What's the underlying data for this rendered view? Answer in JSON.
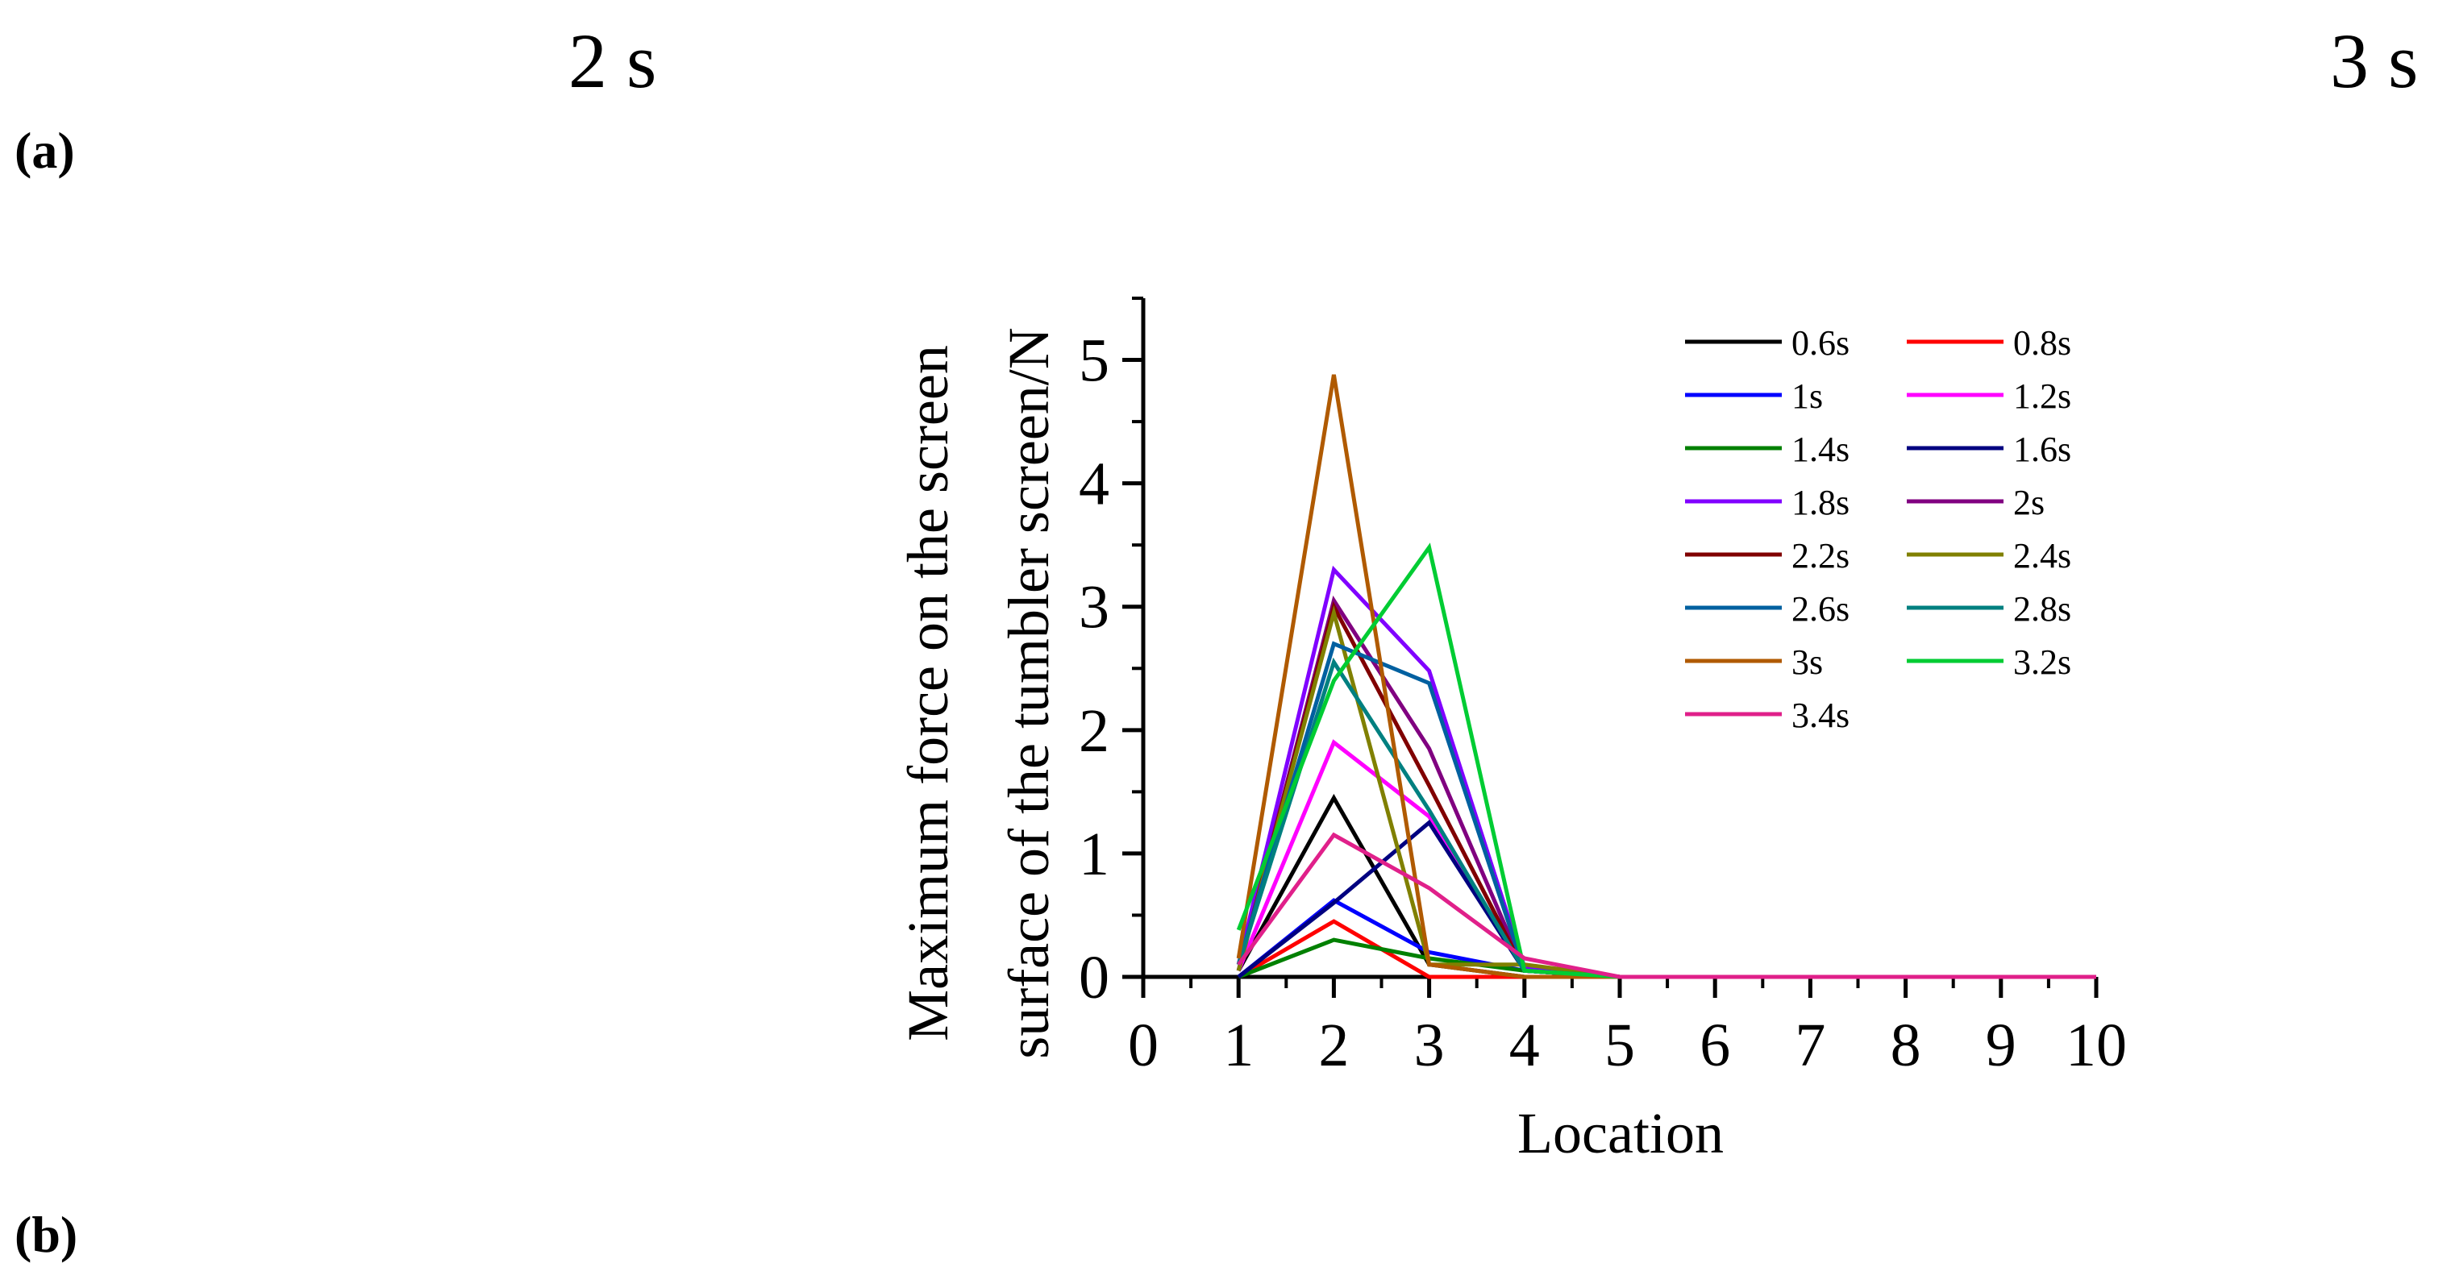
{
  "page": {
    "top_left_label": "2 s",
    "top_right_label": "3 s",
    "panel_a_label": "(a)",
    "panel_b_label": "(b)"
  },
  "chart_data": {
    "type": "line",
    "title": "",
    "xlabel": "Location",
    "ylabel_line1": "Maximum force on the screen",
    "ylabel_line2": "surface of the tumbler screen/N",
    "xlim": [
      0,
      10
    ],
    "ylim": [
      0,
      5.5
    ],
    "xticks": [
      0,
      1,
      2,
      3,
      4,
      5,
      6,
      7,
      8,
      9,
      10
    ],
    "yticks": [
      0,
      1,
      2,
      3,
      4,
      5
    ],
    "grid": false,
    "legend_position": "top-right",
    "x": [
      1,
      2,
      3,
      4,
      5,
      6,
      7,
      8,
      9,
      10
    ],
    "series": [
      {
        "name": "0.6s",
        "color": "#000000",
        "values": [
          0.05,
          1.45,
          0.1,
          0.0,
          0,
          0,
          0,
          0,
          0,
          0
        ]
      },
      {
        "name": "0.8s",
        "color": "#ff0000",
        "values": [
          0.0,
          0.45,
          0.0,
          0.0,
          0,
          0,
          0,
          0,
          0,
          0
        ]
      },
      {
        "name": "1s",
        "color": "#0000ff",
        "values": [
          0.0,
          0.62,
          0.2,
          0.05,
          0,
          0,
          0,
          0,
          0,
          0
        ]
      },
      {
        "name": "1.2s",
        "color": "#ff00ff",
        "values": [
          0.05,
          1.9,
          1.3,
          0.05,
          0,
          0,
          0,
          0,
          0,
          0
        ]
      },
      {
        "name": "1.4s",
        "color": "#008000",
        "values": [
          0.0,
          0.3,
          0.15,
          0.05,
          0,
          0,
          0,
          0,
          0,
          0
        ]
      },
      {
        "name": "1.6s",
        "color": "#000080",
        "values": [
          0.0,
          0.6,
          1.25,
          0.05,
          0,
          0,
          0,
          0,
          0,
          0
        ]
      },
      {
        "name": "1.8s",
        "color": "#8000ff",
        "values": [
          0.1,
          3.3,
          2.48,
          0.08,
          0,
          0,
          0,
          0,
          0,
          0
        ]
      },
      {
        "name": "2s",
        "color": "#800080",
        "values": [
          0.05,
          3.05,
          1.85,
          0.05,
          0,
          0,
          0,
          0,
          0,
          0
        ]
      },
      {
        "name": "2.2s",
        "color": "#800000",
        "values": [
          0.05,
          3.0,
          1.55,
          0.05,
          0,
          0,
          0,
          0,
          0,
          0
        ]
      },
      {
        "name": "2.4s",
        "color": "#808000",
        "values": [
          0.05,
          2.95,
          0.1,
          0.1,
          0,
          0,
          0,
          0,
          0,
          0
        ]
      },
      {
        "name": "2.6s",
        "color": "#0060a0",
        "values": [
          0.1,
          2.7,
          2.38,
          0.05,
          0,
          0,
          0,
          0,
          0,
          0
        ]
      },
      {
        "name": "2.8s",
        "color": "#008080",
        "values": [
          0.1,
          2.55,
          1.35,
          0.05,
          0,
          0,
          0,
          0,
          0,
          0
        ]
      },
      {
        "name": "3s",
        "color": "#b05a00",
        "values": [
          0.15,
          4.88,
          0.1,
          0.0,
          0,
          0,
          0,
          0,
          0,
          0
        ]
      },
      {
        "name": "3.2s",
        "color": "#00cc33",
        "values": [
          0.38,
          2.4,
          3.48,
          0.05,
          0,
          0,
          0,
          0,
          0,
          0
        ]
      },
      {
        "name": "3.4s",
        "color": "#e0208a",
        "values": [
          0.1,
          1.15,
          0.72,
          0.15,
          0,
          0,
          0,
          0,
          0,
          0
        ]
      }
    ]
  }
}
